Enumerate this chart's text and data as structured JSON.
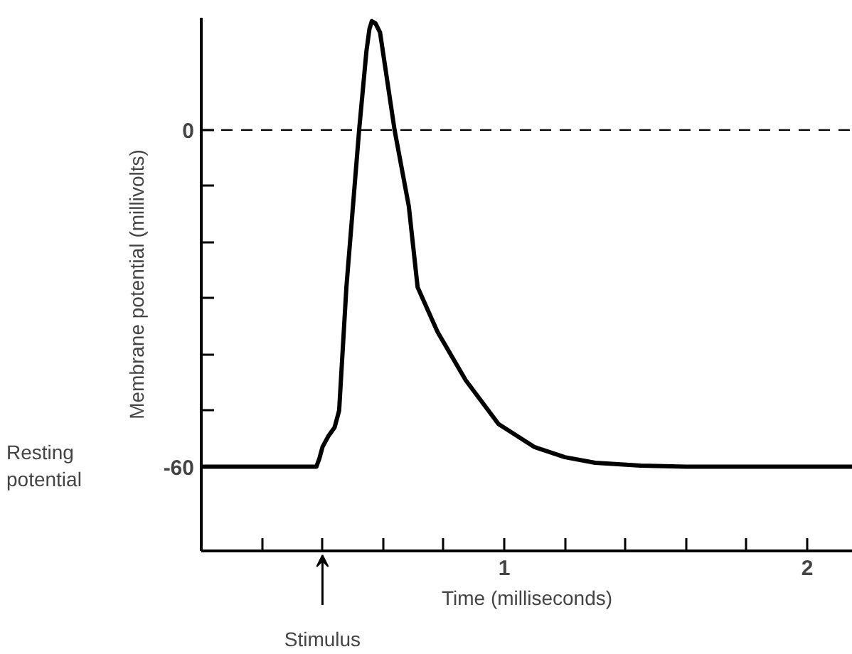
{
  "chart_data": {
    "type": "line",
    "xlabel": "Time (milliseconds)",
    "ylabel": "Membrane potential (millivolts)",
    "x": [
      0.0,
      0.38,
      0.39,
      0.4,
      0.42,
      0.44,
      0.455,
      0.479,
      0.521,
      0.545,
      0.555,
      0.563,
      0.575,
      0.59,
      0.638,
      0.685,
      0.714,
      0.78,
      0.873,
      0.981,
      1.1,
      1.2,
      1.3,
      1.45,
      1.6,
      2.15
    ],
    "series": [
      {
        "color": "#000000",
        "values": [
          -60,
          -60,
          -58.5,
          -56.5,
          -54.5,
          -53,
          -50,
          -28,
          0,
          14,
          18,
          19.4,
          19,
          17.4,
          0,
          -13.6,
          -28,
          -36,
          -44.6,
          -52.4,
          -56.5,
          -58.3,
          -59.3,
          -59.8,
          -60,
          -60
        ]
      }
    ],
    "xlim": [
      0,
      2.15
    ],
    "ylim": [
      -75,
      20
    ],
    "xticks": [
      {
        "value": 0.2,
        "label": null
      },
      {
        "value": 0.4,
        "label": null
      },
      {
        "value": 0.6,
        "label": null
      },
      {
        "value": 0.8,
        "label": null
      },
      1,
      {
        "value": 1.2,
        "label": null
      },
      {
        "value": 1.4,
        "label": null
      },
      {
        "value": 1.6,
        "label": null
      },
      {
        "value": 1.8,
        "label": null
      },
      2
    ],
    "yticks": [
      -60,
      {
        "value": -50,
        "label": null
      },
      {
        "value": -40,
        "label": null
      },
      {
        "value": -30,
        "label": null
      },
      {
        "value": -20,
        "label": null
      },
      {
        "value": -10,
        "label": null
      },
      0
    ],
    "ref_lines": [
      {
        "axis": "y",
        "value": 0,
        "line_style": "dashed",
        "color": "#000000"
      }
    ],
    "annotations": [
      "Resting potential",
      "Stimulus"
    ],
    "grid": false,
    "marker": "none",
    "line_style": "solid"
  }
}
